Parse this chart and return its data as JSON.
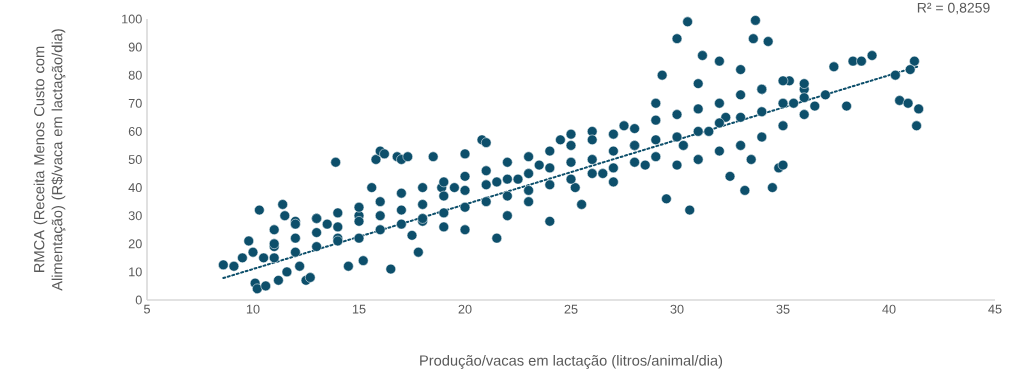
{
  "chart_data": {
    "type": "scatter",
    "xlabel": "Produção/vacas em lactação (litros/animal/dia)",
    "ylabel": "RMCA (Receita Menos Custo com Alimentação) (R$/vaca em lactação/dia)",
    "annotations": [
      "R² = 0,8259"
    ],
    "xlim": [
      5,
      45
    ],
    "ylim": [
      0,
      100
    ],
    "xticks": [
      5,
      10,
      15,
      20,
      25,
      30,
      35,
      40,
      45
    ],
    "yticks": [
      0,
      10,
      20,
      30,
      40,
      50,
      60,
      70,
      80,
      90,
      100
    ],
    "marker": "circle",
    "series": [
      {
        "color": "#0d4f6b",
        "x": [
          8.6,
          9.1,
          9.5,
          9.8,
          10,
          10.1,
          10.2,
          10.3,
          10.5,
          10.6,
          11,
          11.2,
          11.4,
          11.5,
          11.6,
          12,
          12.2,
          12.5,
          12.7,
          13,
          13.5,
          13.9,
          14,
          14.5,
          15,
          15.2,
          15.6,
          15.8,
          16,
          16.2,
          16.5,
          16.8,
          17,
          17.3,
          17.5,
          17.8,
          18,
          18.5,
          18.9,
          19,
          19.5,
          20,
          20,
          20.8,
          21,
          21.5,
          21.5,
          22,
          22.5,
          23,
          23.5,
          24,
          24.5,
          25,
          25.2,
          25.5,
          26,
          26.5,
          27,
          27.5,
          28,
          28.5,
          29,
          29.3,
          29.5,
          30,
          30.3,
          30.5,
          30.6,
          31,
          31.2,
          31.5,
          32,
          32.3,
          32.5,
          33,
          33.2,
          33.6,
          33.7,
          33.5,
          34,
          34.3,
          34.5,
          34.8,
          35,
          35.3,
          35.5,
          36,
          36.5,
          37,
          37.4,
          38,
          38.3,
          38.7,
          39.2,
          40.3,
          40.5,
          40.9,
          41.2,
          41.3,
          41.4,
          41,
          11,
          11,
          11,
          12,
          12,
          12,
          13,
          13,
          13,
          14,
          14,
          14,
          15,
          15,
          15,
          16,
          16,
          16,
          17,
          17,
          17,
          18,
          18,
          18,
          19,
          19,
          19,
          20,
          20,
          20,
          21,
          21,
          21,
          22,
          22,
          22,
          23,
          23,
          23,
          24,
          24,
          24,
          25,
          25,
          25,
          26,
          26,
          26,
          27,
          27,
          27,
          28,
          28,
          28,
          29,
          29,
          29,
          30,
          30,
          30,
          31,
          31,
          31,
          32,
          32,
          32,
          33,
          33,
          33,
          34,
          34,
          34,
          35,
          35,
          35,
          36,
          36,
          36
        ],
        "values": [
          12.5,
          12,
          15,
          21,
          17,
          6,
          4,
          32,
          15,
          5,
          19,
          7,
          34,
          30,
          10,
          28,
          12,
          7,
          8,
          29,
          27,
          49,
          22,
          12,
          30,
          14,
          40,
          50,
          53,
          52,
          11,
          51,
          50,
          51,
          23,
          17,
          28,
          51,
          40,
          26,
          40,
          52,
          25,
          57,
          56,
          42,
          22,
          30,
          43,
          35,
          48,
          28,
          57,
          59,
          40,
          34,
          60,
          45,
          42,
          62,
          55,
          48,
          70,
          80,
          36,
          93,
          55,
          99,
          32,
          77,
          87,
          60,
          85,
          65,
          44,
          82,
          39,
          93,
          99.5,
          50,
          75,
          92,
          40,
          47,
          48,
          78,
          70,
          75,
          69,
          73,
          83,
          69,
          85,
          85,
          87,
          80,
          71,
          70,
          85,
          62,
          68,
          82,
          15,
          20,
          25,
          17,
          22,
          27,
          19,
          24,
          29,
          21,
          26,
          31,
          22,
          28,
          33,
          25,
          30,
          35,
          27,
          32,
          38,
          29,
          34,
          40,
          31,
          37,
          42,
          33,
          39,
          44,
          35,
          41,
          46,
          37,
          43,
          49,
          39,
          45,
          51,
          41,
          47,
          53,
          43,
          49,
          55,
          45,
          50,
          57,
          47,
          53,
          59,
          49,
          55,
          61,
          51,
          57,
          64,
          48,
          58,
          66,
          50,
          60,
          68,
          53,
          63,
          70,
          55,
          65,
          73,
          58,
          67,
          75,
          62,
          70,
          78,
          66,
          72,
          77
        ]
      },
      {
        "type": "line",
        "line_style": "dotted",
        "marker": "none",
        "color": "#0d4f6b",
        "x": [
          8.6,
          41.4
        ],
        "values": [
          7.8,
          83.2
        ]
      }
    ]
  }
}
